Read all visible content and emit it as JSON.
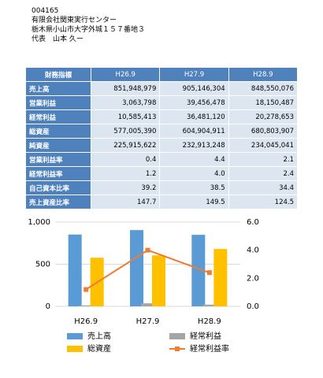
{
  "header": {
    "code": "004165",
    "company": "有限会社関東実行センター",
    "address": "栃木県小山市大字外城１５７番地３",
    "representative": "代表　山本 久ー"
  },
  "table": {
    "columns": [
      "財務指標",
      "H26.9",
      "H27.9",
      "H28.9"
    ],
    "rows": [
      [
        "売上高",
        "851,948,979",
        "905,146,304",
        "848,550,076"
      ],
      [
        "営業利益",
        "3,063,798",
        "39,456,478",
        "18,150,487"
      ],
      [
        "経常利益",
        "10,585,413",
        "36,481,120",
        "20,278,653"
      ],
      [
        "総資産",
        "577,005,390",
        "604,904,911",
        "680,803,907"
      ],
      [
        "純資産",
        "225,915,622",
        "232,913,248",
        "234,045,041"
      ],
      [
        "営業利益率",
        "0.4",
        "4.4",
        "2.1"
      ],
      [
        "経常利益率",
        "1.2",
        "4.0",
        "2.4"
      ],
      [
        "自己資本比率",
        "39.2",
        "38.5",
        "34.4"
      ],
      [
        "売上資産比率",
        "147.7",
        "149.5",
        "124.5"
      ]
    ]
  },
  "chart_data": {
    "type": "bar",
    "categories": [
      "H26.9",
      "H27.9",
      "H28.9"
    ],
    "series": [
      {
        "name": "売上高",
        "color": "#5b9bd5",
        "values": [
          852,
          905,
          849
        ]
      },
      {
        "name": "経常利益",
        "color": "#a5a5a5",
        "values": [
          11,
          36,
          20
        ]
      },
      {
        "name": "総資産",
        "color": "#ffc000",
        "values": [
          577,
          605,
          681
        ]
      },
      {
        "name": "経常利益率",
        "color": "#ed7d31",
        "type": "line",
        "axis": "y2",
        "values": [
          1.2,
          4.0,
          2.4
        ]
      }
    ],
    "ylim": [
      0,
      1000
    ],
    "yticks": [
      0,
      500,
      {
        "value": 1000,
        "label": "1,000"
      }
    ],
    "y2lim": [
      0,
      6
    ],
    "y2ticks": [
      {
        "value": 0,
        "label": "0.0"
      },
      {
        "value": 2,
        "label": "2.0"
      },
      {
        "value": 4,
        "label": "4.0"
      },
      {
        "value": 6,
        "label": "6.0"
      }
    ],
    "grid": true
  }
}
